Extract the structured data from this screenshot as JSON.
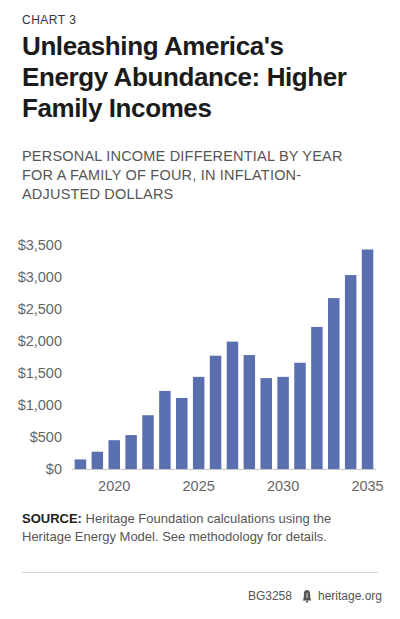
{
  "chart_data": {
    "type": "bar",
    "kicker": "CHART 3",
    "title": "Unleashing America's Energy Abundance: Higher Family Incomes",
    "subtitle": "PERSONAL INCOME DIFFERENTIAL BY YEAR FOR A FAMILY OF FOUR, IN INFLATION-ADJUSTED DOLLARS",
    "categories": [
      null,
      null,
      "2020",
      null,
      null,
      null,
      null,
      "2025",
      null,
      null,
      null,
      null,
      "2030",
      null,
      null,
      null,
      null,
      "2035"
    ],
    "values": [
      150,
      270,
      450,
      530,
      840,
      1220,
      1110,
      1440,
      1770,
      1990,
      1780,
      1420,
      1440,
      1660,
      2220,
      2670,
      3030,
      3430
    ],
    "color": "#5a6fb0",
    "ylim": [
      0,
      3500
    ],
    "yticks": [
      {
        "value": 0,
        "label": "$0"
      },
      {
        "value": 500,
        "label": "$500"
      },
      {
        "value": 1000,
        "label": "$1,000"
      },
      {
        "value": 1500,
        "label": "$1,500"
      },
      {
        "value": 2000,
        "label": "$2,000"
      },
      {
        "value": 2500,
        "label": "$2,500"
      },
      {
        "value": 3000,
        "label": "$3,000"
      },
      {
        "value": 3500,
        "label": "$3,500"
      }
    ],
    "grid": false,
    "source": {
      "label": "SOURCE:",
      "text": "Heritage Foundation calculations using the Heritage Energy Model. See methodology for details."
    },
    "footer": {
      "code": "BG3258",
      "site": "heritage.org"
    }
  }
}
